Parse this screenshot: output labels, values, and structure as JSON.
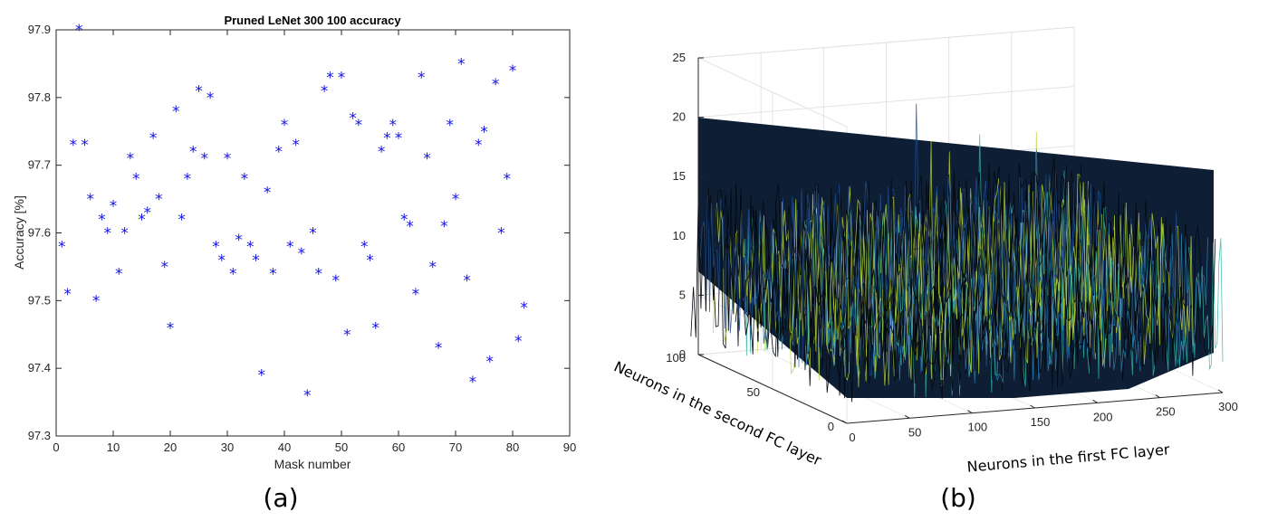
{
  "chart_data": [
    {
      "panel_label": "(a)",
      "type": "scatter",
      "title": "Pruned LeNet 300 100 accuracy",
      "xlabel": "Mask number",
      "ylabel": "Accuracy [%]",
      "xlim": [
        0,
        90
      ],
      "ylim": [
        97.3,
        97.9
      ],
      "xticks": [
        0,
        10,
        20,
        30,
        40,
        50,
        60,
        70,
        80,
        90
      ],
      "yticks": [
        97.3,
        97.4,
        97.5,
        97.6,
        97.7,
        97.8,
        97.9
      ],
      "marker": "*",
      "marker_color": "#1414e6",
      "grid": false,
      "x": [
        1,
        2,
        3,
        4,
        5,
        6,
        7,
        8,
        9,
        10,
        11,
        12,
        13,
        14,
        15,
        16,
        17,
        18,
        19,
        20,
        21,
        22,
        23,
        24,
        25,
        26,
        27,
        28,
        29,
        30,
        31,
        32,
        33,
        34,
        35,
        36,
        37,
        38,
        39,
        40,
        41,
        42,
        43,
        44,
        45,
        46,
        47,
        48,
        49,
        50,
        51,
        52,
        53,
        54,
        55,
        56,
        57,
        58,
        59,
        60,
        61,
        62,
        63,
        64,
        65,
        66,
        67,
        68,
        69,
        70,
        71,
        72,
        73,
        74,
        75,
        76,
        77,
        78,
        79,
        80,
        81,
        82
      ],
      "y": [
        97.58,
        97.51,
        97.73,
        97.9,
        97.73,
        97.65,
        97.5,
        97.62,
        97.6,
        97.64,
        97.54,
        97.6,
        97.71,
        97.68,
        97.62,
        97.63,
        97.74,
        97.65,
        97.55,
        97.46,
        97.78,
        97.62,
        97.68,
        97.72,
        97.81,
        97.71,
        97.8,
        97.58,
        97.56,
        97.71,
        97.54,
        97.59,
        97.68,
        97.58,
        97.56,
        97.39,
        97.66,
        97.54,
        97.72,
        97.76,
        97.58,
        97.73,
        97.57,
        97.36,
        97.6,
        97.54,
        97.81,
        97.83,
        97.53,
        97.83,
        97.45,
        97.77,
        97.76,
        97.58,
        97.56,
        97.46,
        97.72,
        97.74,
        97.76,
        97.74,
        97.62,
        97.61,
        97.51,
        97.83,
        97.71,
        97.55,
        97.43,
        97.61,
        97.76,
        97.65,
        97.85,
        97.53,
        97.38,
        97.73,
        97.75,
        97.41,
        97.82,
        97.6,
        97.68,
        97.84,
        97.44,
        97.49
      ]
    },
    {
      "panel_label": "(b)",
      "type": "surface3d",
      "xlabel": "Neurons in the first FC layer",
      "ylabel": "Neurons in the second FC layer",
      "xlim": [
        0,
        300
      ],
      "ylim": [
        0,
        100
      ],
      "zlim": [
        0,
        25
      ],
      "xticks": [
        0,
        50,
        100,
        150,
        200,
        250,
        300
      ],
      "yticks": [
        0,
        50,
        100
      ],
      "zticks": [
        0,
        5,
        10,
        15,
        20,
        25
      ],
      "colormap": [
        "#0b1a3a",
        "#1f4f8f",
        "#2a7fb0",
        "#33b5a5",
        "#b8d433"
      ],
      "grid": true
    }
  ]
}
